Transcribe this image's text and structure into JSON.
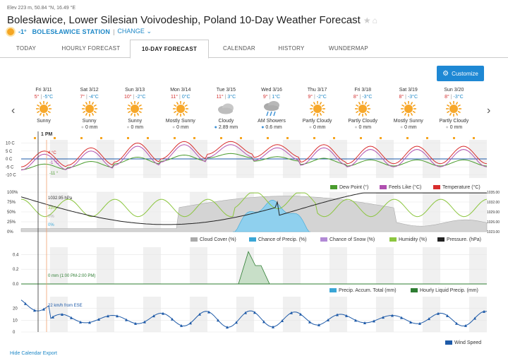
{
  "header": {
    "elevation": "Elev 223 m, 50.84 °N, 16.49 °E",
    "title": "Bolesławice, Lower Silesian Voivodeship, Poland 10-Day Weather Forecast",
    "current_temp": "-1°",
    "station": "BOLESŁAWICE STATION",
    "change": "CHANGE"
  },
  "tabs": [
    "TODAY",
    "HOURLY FORECAST",
    "10-DAY FORECAST",
    "CALENDAR",
    "HISTORY",
    "WUNDERMAP"
  ],
  "customize_label": "Customize",
  "days": [
    {
      "date": "Fri 3/11",
      "hi": "5°",
      "lo": "-5°C",
      "cond": "Sunny",
      "precip": "",
      "icon": "sun"
    },
    {
      "date": "Sat 3/12",
      "hi": "7°",
      "lo": "-4°C",
      "cond": "Sunny",
      "precip": "0 mm",
      "icon": "sun"
    },
    {
      "date": "Sun 3/13",
      "hi": "10°",
      "lo": "-2°C",
      "cond": "Sunny",
      "precip": "0 mm",
      "icon": "sun"
    },
    {
      "date": "Mon 3/14",
      "hi": "11°",
      "lo": "0°C",
      "cond": "Mostly Sunny",
      "precip": "0 mm",
      "icon": "sun"
    },
    {
      "date": "Tue 3/15",
      "hi": "11°",
      "lo": "3°C",
      "cond": "Cloudy",
      "precip": "2.89 mm",
      "icon": "cloud"
    },
    {
      "date": "Wed 3/16",
      "hi": "9°",
      "lo": "1°C",
      "cond": "AM Showers",
      "precip": "0.6 mm",
      "icon": "rain"
    },
    {
      "date": "Thu 3/17",
      "hi": "9°",
      "lo": "-2°C",
      "cond": "Partly Cloudy",
      "precip": "0 mm",
      "icon": "sun"
    },
    {
      "date": "Fri 3/18",
      "hi": "8°",
      "lo": "-3°C",
      "cond": "Partly Cloudy",
      "precip": "0 mm",
      "icon": "sun"
    },
    {
      "date": "Sat 3/19",
      "hi": "8°",
      "lo": "-3°C",
      "cond": "Mostly Sunny",
      "precip": "0 mm",
      "icon": "sun"
    },
    {
      "date": "Sun 3/20",
      "hi": "8°",
      "lo": "-3°C",
      "cond": "Partly Cloudy",
      "precip": "0 mm",
      "icon": "sun"
    }
  ],
  "cursor_label": "1 PM",
  "chart_data": [
    {
      "type": "line",
      "title": "Temperature",
      "y_ticks": [
        "10 C",
        "5 C",
        "0 C",
        "-5 C",
        "-10 C"
      ],
      "ylim": [
        -12,
        12
      ],
      "annotations": [
        "4 °C",
        "-1 °C",
        "-11 °"
      ],
      "series": [
        {
          "name": "Dew Point (°)",
          "color": "#4a9c2e"
        },
        {
          "name": "Feels Like (°C)",
          "color": "#b050b0"
        },
        {
          "name": "Temperature (°C)",
          "color": "#d82d2d"
        }
      ]
    },
    {
      "type": "line",
      "title": "Cloud / Precip / Humidity / Pressure",
      "y_ticks_left": [
        "100%",
        "75%",
        "50%",
        "25%",
        "0%"
      ],
      "y_ticks_right": [
        "1035.00",
        "1032.00",
        "1029.00",
        "1026.00",
        "1023.00"
      ],
      "annotations": [
        "1032.95 hPa",
        "33%",
        "0%",
        "0%"
      ],
      "series": [
        {
          "name": "Cloud Cover (%)",
          "color": "#aaaaaa"
        },
        {
          "name": "Chance of Precip. (%)",
          "color": "#3aa6d6"
        },
        {
          "name": "Chance of Snow (%)",
          "color": "#b28ad6"
        },
        {
          "name": "Humidity (%)",
          "color": "#8cc63f"
        },
        {
          "name": "Pressure. (hPa)",
          "color": "#222222"
        }
      ]
    },
    {
      "type": "area",
      "title": "Precipitation",
      "y_ticks": [
        "0.4",
        "0.2",
        "0.0"
      ],
      "ylim": [
        0,
        0.5
      ],
      "annotations": [
        "0 mm (1:00 PM-2:00 PM)"
      ],
      "series": [
        {
          "name": "Precip. Accum. Total (mm)",
          "color": "#3aa6d6"
        },
        {
          "name": "Hourly Liquid Precip. (mm)",
          "color": "#2e7d32"
        }
      ]
    },
    {
      "type": "line",
      "title": "Wind Speed",
      "y_ticks": [
        "20",
        "10",
        "0"
      ],
      "ylim": [
        0,
        30
      ],
      "annotations": [
        "22 km/h from ESE"
      ],
      "series": [
        {
          "name": "Wind Speed",
          "color": "#1e5aa8"
        }
      ]
    }
  ],
  "footer": "Hide Calendar Export"
}
